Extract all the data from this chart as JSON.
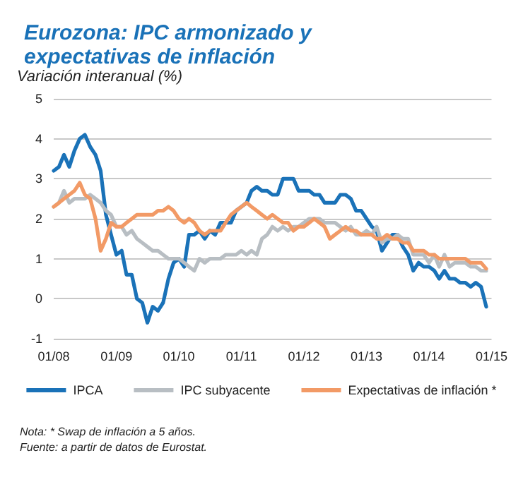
{
  "chart_data": {
    "type": "line",
    "title": "Eurozona: IPC armonizado y expectativas de inflación",
    "ylabel": "Variación interanual (%)",
    "x": [
      "2008-01",
      "2008-02",
      "2008-03",
      "2008-04",
      "2008-05",
      "2008-06",
      "2008-07",
      "2008-08",
      "2008-09",
      "2008-10",
      "2008-11",
      "2008-12",
      "2009-01",
      "2009-02",
      "2009-03",
      "2009-04",
      "2009-05",
      "2009-06",
      "2009-07",
      "2009-08",
      "2009-09",
      "2009-10",
      "2009-11",
      "2009-12",
      "2010-01",
      "2010-02",
      "2010-03",
      "2010-04",
      "2010-05",
      "2010-06",
      "2010-07",
      "2010-08",
      "2010-09",
      "2010-10",
      "2010-11",
      "2010-12",
      "2011-01",
      "2011-02",
      "2011-03",
      "2011-04",
      "2011-05",
      "2011-06",
      "2011-07",
      "2011-08",
      "2011-09",
      "2011-10",
      "2011-11",
      "2011-12",
      "2012-01",
      "2012-02",
      "2012-03",
      "2012-04",
      "2012-05",
      "2012-06",
      "2012-07",
      "2012-08",
      "2012-09",
      "2012-10",
      "2012-11",
      "2012-12",
      "2013-01",
      "2013-02",
      "2013-03",
      "2013-04",
      "2013-05",
      "2013-06",
      "2013-07",
      "2013-08",
      "2013-09",
      "2013-10",
      "2013-11",
      "2013-12",
      "2014-01",
      "2014-02",
      "2014-03",
      "2014-04",
      "2014-05",
      "2014-06",
      "2014-07",
      "2014-08",
      "2014-09",
      "2014-10",
      "2014-11",
      "2014-12"
    ],
    "series": [
      {
        "name": "IPCA",
        "color": "#1a72b8",
        "values": [
          3.2,
          3.3,
          3.6,
          3.3,
          3.7,
          4.0,
          4.1,
          3.8,
          3.6,
          3.2,
          2.1,
          1.6,
          1.1,
          1.2,
          0.6,
          0.6,
          0.0,
          -0.1,
          -0.6,
          -0.2,
          -0.3,
          -0.1,
          0.5,
          0.9,
          1.0,
          0.8,
          1.6,
          1.6,
          1.7,
          1.5,
          1.7,
          1.6,
          1.9,
          1.9,
          1.9,
          2.2,
          2.3,
          2.4,
          2.7,
          2.8,
          2.7,
          2.7,
          2.6,
          2.6,
          3.0,
          3.0,
          3.0,
          2.7,
          2.7,
          2.7,
          2.6,
          2.6,
          2.4,
          2.4,
          2.4,
          2.6,
          2.6,
          2.5,
          2.2,
          2.2,
          2.0,
          1.8,
          1.7,
          1.2,
          1.4,
          1.6,
          1.6,
          1.3,
          1.1,
          0.7,
          0.9,
          0.8,
          0.8,
          0.7,
          0.5,
          0.7,
          0.5,
          0.5,
          0.4,
          0.4,
          0.3,
          0.4,
          0.3,
          -0.2
        ]
      },
      {
        "name": "IPC subyacente",
        "color": "#b8bec3",
        "values": [
          2.3,
          2.4,
          2.7,
          2.4,
          2.5,
          2.5,
          2.5,
          2.6,
          2.5,
          2.4,
          2.2,
          2.1,
          1.8,
          1.8,
          1.6,
          1.7,
          1.5,
          1.4,
          1.3,
          1.2,
          1.2,
          1.1,
          1.0,
          1.0,
          1.0,
          0.9,
          0.8,
          0.7,
          1.0,
          0.9,
          1.0,
          1.0,
          1.0,
          1.1,
          1.1,
          1.1,
          1.2,
          1.1,
          1.2,
          1.1,
          1.5,
          1.6,
          1.8,
          1.7,
          1.8,
          1.7,
          1.8,
          1.8,
          1.9,
          2.0,
          2.0,
          2.0,
          1.9,
          1.9,
          1.9,
          1.8,
          1.7,
          1.8,
          1.6,
          1.6,
          1.7,
          1.6,
          1.8,
          1.4,
          1.5,
          1.5,
          1.6,
          1.5,
          1.5,
          1.1,
          1.1,
          1.1,
          0.9,
          1.1,
          0.8,
          1.1,
          0.8,
          0.9,
          0.9,
          0.9,
          0.8,
          0.8,
          0.7,
          0.7
        ]
      },
      {
        "name": "Expectativas de inflación *",
        "color": "#f29a66",
        "values": [
          2.3,
          2.4,
          2.5,
          2.6,
          2.7,
          2.9,
          2.6,
          2.5,
          2.0,
          1.2,
          1.5,
          1.9,
          1.8,
          1.8,
          1.9,
          2.0,
          2.1,
          2.1,
          2.1,
          2.1,
          2.2,
          2.2,
          2.3,
          2.2,
          2.0,
          1.9,
          2.0,
          1.9,
          1.7,
          1.6,
          1.7,
          1.7,
          1.7,
          1.9,
          2.1,
          2.2,
          2.3,
          2.4,
          2.3,
          2.2,
          2.1,
          2.0,
          2.1,
          2.0,
          1.9,
          1.9,
          1.7,
          1.8,
          1.8,
          1.9,
          2.0,
          1.9,
          1.8,
          1.5,
          1.6,
          1.7,
          1.8,
          1.7,
          1.7,
          1.6,
          1.6,
          1.6,
          1.5,
          1.5,
          1.6,
          1.5,
          1.5,
          1.4,
          1.4,
          1.2,
          1.2,
          1.2,
          1.1,
          1.1,
          1.0,
          1.0,
          1.0,
          1.0,
          1.0,
          1.0,
          0.9,
          0.9,
          0.9,
          0.75
        ]
      }
    ],
    "xlim": [
      "2008-01",
      "2015-01"
    ],
    "xticks": [
      {
        "value": "2008-01",
        "label": "01/08"
      },
      {
        "value": "2009-01",
        "label": "01/09"
      },
      {
        "value": "2010-01",
        "label": "01/10"
      },
      {
        "value": "2011-01",
        "label": "01/11"
      },
      {
        "value": "2012-01",
        "label": "01/12"
      },
      {
        "value": "2013-01",
        "label": "01/13"
      },
      {
        "value": "2014-01",
        "label": "01/14"
      },
      {
        "value": "2015-01",
        "label": "01/15"
      }
    ],
    "ylim": [
      -1,
      5
    ],
    "yticks": [
      -1,
      0,
      1,
      2,
      3,
      4,
      5
    ],
    "grid": "y",
    "legend": "bottom",
    "marker": "none",
    "line_style": "solid",
    "annotations": [
      "Nota: * Swap de inflación a 5 años.",
      "Fuente: a partir de datos de Eurostat."
    ]
  }
}
